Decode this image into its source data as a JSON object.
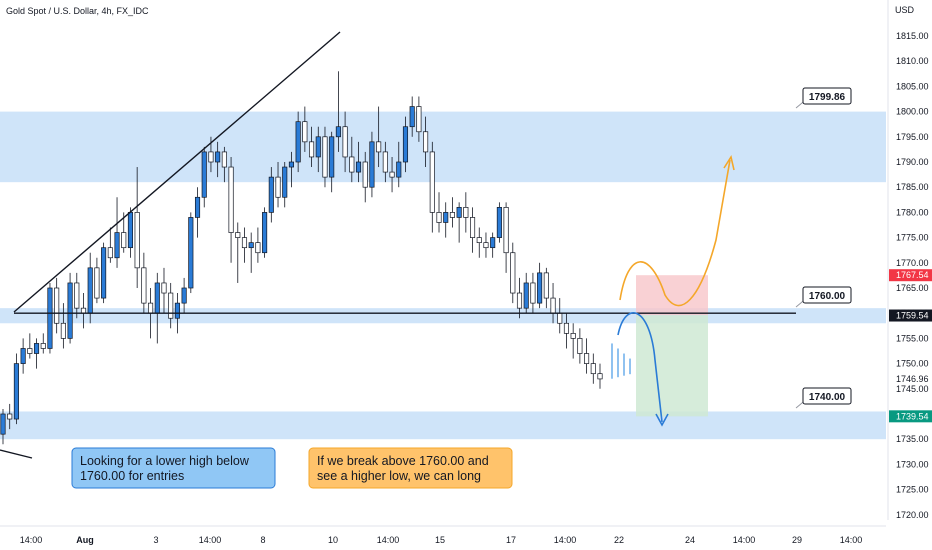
{
  "chart_data": {
    "type": "candlestick",
    "title": "Gold Spot / U.S. Dollar, 4h, FX_IDC",
    "currency_label": "USD",
    "ylim": [
      1717,
      1822
    ],
    "y_ticks": [
      1720,
      1725,
      1730,
      1735,
      1740,
      1745,
      1750,
      1755,
      1760,
      1765,
      1770,
      1775,
      1780,
      1785,
      1790,
      1795,
      1800,
      1805,
      1810,
      1815
    ],
    "x_tick_labels": [
      "14:00",
      "Aug",
      "3",
      "14:00",
      "8",
      "10",
      "14:00",
      "15",
      "17",
      "14:00",
      "22",
      "24",
      "14:00",
      "29",
      "14:00"
    ],
    "price_tags": {
      "current_price": "1759.54",
      "upper_box": "1767.54",
      "lower_box": "1739.54",
      "last_close": "1746.96"
    },
    "zones": [
      {
        "from": 1786,
        "to": 1800
      },
      {
        "from": 1758,
        "to": 1761
      },
      {
        "from": 1735,
        "to": 1740.5
      }
    ],
    "level_labels": [
      "1799.86",
      "1760.00",
      "1740.00"
    ],
    "annotations": {
      "blue_note": "Looking for a lower high below\n1760.00 for entries",
      "orange_note": "If we break above 1760.00 and\nsee a higher low, we can long"
    },
    "candles": [
      {
        "o": 1736,
        "h": 1741,
        "l": 1734,
        "c": 1740
      },
      {
        "o": 1740,
        "h": 1742,
        "l": 1737,
        "c": 1739
      },
      {
        "o": 1739,
        "h": 1752,
        "l": 1738,
        "c": 1750
      },
      {
        "o": 1750,
        "h": 1755,
        "l": 1748,
        "c": 1753
      },
      {
        "o": 1753,
        "h": 1756,
        "l": 1751,
        "c": 1752
      },
      {
        "o": 1752,
        "h": 1755,
        "l": 1749,
        "c": 1754
      },
      {
        "o": 1754,
        "h": 1756,
        "l": 1752,
        "c": 1753
      },
      {
        "o": 1753,
        "h": 1766,
        "l": 1752,
        "c": 1765
      },
      {
        "o": 1765,
        "h": 1767,
        "l": 1756,
        "c": 1758
      },
      {
        "o": 1758,
        "h": 1762,
        "l": 1753,
        "c": 1755
      },
      {
        "o": 1755,
        "h": 1768,
        "l": 1754,
        "c": 1766
      },
      {
        "o": 1766,
        "h": 1768,
        "l": 1759,
        "c": 1761
      },
      {
        "o": 1761,
        "h": 1764,
        "l": 1757,
        "c": 1760
      },
      {
        "o": 1760,
        "h": 1772,
        "l": 1758,
        "c": 1769
      },
      {
        "o": 1769,
        "h": 1771,
        "l": 1762,
        "c": 1763
      },
      {
        "o": 1763,
        "h": 1774,
        "l": 1762,
        "c": 1773
      },
      {
        "o": 1773,
        "h": 1777,
        "l": 1770,
        "c": 1771
      },
      {
        "o": 1771,
        "h": 1783,
        "l": 1769,
        "c": 1776
      },
      {
        "o": 1776,
        "h": 1780,
        "l": 1772,
        "c": 1773
      },
      {
        "o": 1773,
        "h": 1781,
        "l": 1771,
        "c": 1780
      },
      {
        "o": 1780,
        "h": 1789,
        "l": 1765,
        "c": 1769
      },
      {
        "o": 1769,
        "h": 1772,
        "l": 1760,
        "c": 1762
      },
      {
        "o": 1762,
        "h": 1765,
        "l": 1755,
        "c": 1760
      },
      {
        "o": 1760,
        "h": 1768,
        "l": 1754,
        "c": 1766
      },
      {
        "o": 1766,
        "h": 1769,
        "l": 1760,
        "c": 1764
      },
      {
        "o": 1764,
        "h": 1766,
        "l": 1757,
        "c": 1759
      },
      {
        "o": 1759,
        "h": 1764,
        "l": 1756,
        "c": 1762
      },
      {
        "o": 1762,
        "h": 1767,
        "l": 1760,
        "c": 1765
      },
      {
        "o": 1765,
        "h": 1780,
        "l": 1764,
        "c": 1779
      },
      {
        "o": 1779,
        "h": 1785,
        "l": 1775,
        "c": 1783
      },
      {
        "o": 1783,
        "h": 1793,
        "l": 1781,
        "c": 1792
      },
      {
        "o": 1792,
        "h": 1795,
        "l": 1788,
        "c": 1790
      },
      {
        "o": 1790,
        "h": 1794,
        "l": 1787,
        "c": 1792
      },
      {
        "o": 1792,
        "h": 1793,
        "l": 1786,
        "c": 1789
      },
      {
        "o": 1789,
        "h": 1791,
        "l": 1770,
        "c": 1776
      },
      {
        "o": 1776,
        "h": 1778,
        "l": 1766,
        "c": 1775
      },
      {
        "o": 1775,
        "h": 1777,
        "l": 1770,
        "c": 1773
      },
      {
        "o": 1773,
        "h": 1776,
        "l": 1768,
        "c": 1774
      },
      {
        "o": 1774,
        "h": 1777,
        "l": 1770,
        "c": 1772
      },
      {
        "o": 1772,
        "h": 1781,
        "l": 1771,
        "c": 1780
      },
      {
        "o": 1780,
        "h": 1789,
        "l": 1778,
        "c": 1787
      },
      {
        "o": 1787,
        "h": 1790,
        "l": 1781,
        "c": 1783
      },
      {
        "o": 1783,
        "h": 1790,
        "l": 1781,
        "c": 1789
      },
      {
        "o": 1789,
        "h": 1792,
        "l": 1785,
        "c": 1790
      },
      {
        "o": 1790,
        "h": 1800,
        "l": 1788,
        "c": 1798
      },
      {
        "o": 1798,
        "h": 1801,
        "l": 1792,
        "c": 1794
      },
      {
        "o": 1794,
        "h": 1797,
        "l": 1789,
        "c": 1791
      },
      {
        "o": 1791,
        "h": 1797,
        "l": 1788,
        "c": 1795
      },
      {
        "o": 1795,
        "h": 1797,
        "l": 1785,
        "c": 1787
      },
      {
        "o": 1787,
        "h": 1796,
        "l": 1784,
        "c": 1795
      },
      {
        "o": 1795,
        "h": 1808,
        "l": 1792,
        "c": 1797
      },
      {
        "o": 1797,
        "h": 1800,
        "l": 1788,
        "c": 1791
      },
      {
        "o": 1791,
        "h": 1795,
        "l": 1786,
        "c": 1788
      },
      {
        "o": 1788,
        "h": 1794,
        "l": 1786,
        "c": 1790
      },
      {
        "o": 1790,
        "h": 1792,
        "l": 1782,
        "c": 1785
      },
      {
        "o": 1785,
        "h": 1796,
        "l": 1783,
        "c": 1794
      },
      {
        "o": 1794,
        "h": 1801,
        "l": 1789,
        "c": 1792
      },
      {
        "o": 1792,
        "h": 1794,
        "l": 1786,
        "c": 1788
      },
      {
        "o": 1788,
        "h": 1791,
        "l": 1784,
        "c": 1787
      },
      {
        "o": 1787,
        "h": 1794,
        "l": 1785,
        "c": 1790
      },
      {
        "o": 1790,
        "h": 1799,
        "l": 1788,
        "c": 1797
      },
      {
        "o": 1797,
        "h": 1803,
        "l": 1795,
        "c": 1801
      },
      {
        "o": 1801,
        "h": 1803,
        "l": 1794,
        "c": 1796
      },
      {
        "o": 1796,
        "h": 1799,
        "l": 1789,
        "c": 1792
      },
      {
        "o": 1792,
        "h": 1794,
        "l": 1776,
        "c": 1780
      },
      {
        "o": 1780,
        "h": 1784,
        "l": 1776,
        "c": 1778
      },
      {
        "o": 1778,
        "h": 1782,
        "l": 1775,
        "c": 1780
      },
      {
        "o": 1780,
        "h": 1783,
        "l": 1777,
        "c": 1779
      },
      {
        "o": 1779,
        "h": 1782,
        "l": 1774,
        "c": 1781
      },
      {
        "o": 1781,
        "h": 1784,
        "l": 1776,
        "c": 1779
      },
      {
        "o": 1779,
        "h": 1781,
        "l": 1772,
        "c": 1775
      },
      {
        "o": 1775,
        "h": 1777,
        "l": 1771,
        "c": 1774
      },
      {
        "o": 1774,
        "h": 1776,
        "l": 1771,
        "c": 1773
      },
      {
        "o": 1773,
        "h": 1776,
        "l": 1771,
        "c": 1775
      },
      {
        "o": 1775,
        "h": 1782,
        "l": 1774,
        "c": 1781
      },
      {
        "o": 1781,
        "h": 1782,
        "l": 1768,
        "c": 1772
      },
      {
        "o": 1772,
        "h": 1774,
        "l": 1762,
        "c": 1764
      },
      {
        "o": 1764,
        "h": 1767,
        "l": 1759,
        "c": 1761
      },
      {
        "o": 1761,
        "h": 1768,
        "l": 1760,
        "c": 1766
      },
      {
        "o": 1766,
        "h": 1768,
        "l": 1760,
        "c": 1762
      },
      {
        "o": 1762,
        "h": 1770,
        "l": 1761,
        "c": 1768
      },
      {
        "o": 1768,
        "h": 1769,
        "l": 1761,
        "c": 1763
      },
      {
        "o": 1763,
        "h": 1766,
        "l": 1758,
        "c": 1760
      },
      {
        "o": 1760,
        "h": 1763,
        "l": 1756,
        "c": 1758
      },
      {
        "o": 1758,
        "h": 1760,
        "l": 1753,
        "c": 1756
      },
      {
        "o": 1756,
        "h": 1758,
        "l": 1751,
        "c": 1755
      },
      {
        "o": 1755,
        "h": 1757,
        "l": 1750,
        "c": 1752
      },
      {
        "o": 1752,
        "h": 1755,
        "l": 1748,
        "c": 1750
      },
      {
        "o": 1750,
        "h": 1752,
        "l": 1746,
        "c": 1748
      },
      {
        "o": 1748,
        "h": 1750,
        "l": 1745,
        "c": 1746.96
      }
    ]
  }
}
